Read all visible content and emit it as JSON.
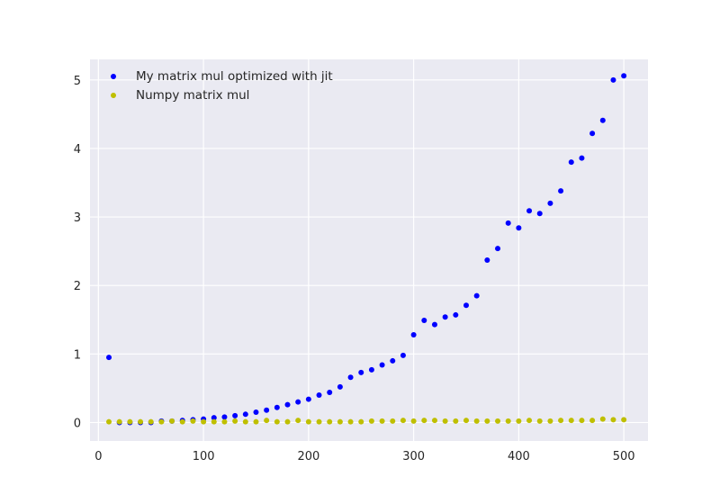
{
  "chart_data": {
    "type": "scatter",
    "title": "",
    "xlabel": "",
    "ylabel": "",
    "xlim": [
      -8,
      523
    ],
    "ylim": [
      -0.27,
      5.3
    ],
    "xticks": [
      0,
      100,
      200,
      300,
      400,
      500
    ],
    "yticks": [
      0,
      1,
      2,
      3,
      4,
      5
    ],
    "grid": true,
    "legend_position": "top-left",
    "series": [
      {
        "name": "My matrix mul optimized with jit",
        "color": "#0000ff",
        "points": [
          [
            10,
            0.95
          ],
          [
            20,
            0.0
          ],
          [
            30,
            0.0
          ],
          [
            40,
            0.0
          ],
          [
            50,
            0.0
          ],
          [
            60,
            0.02
          ],
          [
            70,
            0.02
          ],
          [
            80,
            0.03
          ],
          [
            90,
            0.04
          ],
          [
            100,
            0.05
          ],
          [
            110,
            0.07
          ],
          [
            120,
            0.08
          ],
          [
            130,
            0.1
          ],
          [
            140,
            0.12
          ],
          [
            150,
            0.15
          ],
          [
            160,
            0.18
          ],
          [
            170,
            0.22
          ],
          [
            180,
            0.26
          ],
          [
            190,
            0.3
          ],
          [
            200,
            0.34
          ],
          [
            210,
            0.4
          ],
          [
            220,
            0.44
          ],
          [
            230,
            0.52
          ],
          [
            240,
            0.66
          ],
          [
            250,
            0.73
          ],
          [
            260,
            0.77
          ],
          [
            270,
            0.84
          ],
          [
            280,
            0.9
          ],
          [
            290,
            0.98
          ],
          [
            300,
            1.28
          ],
          [
            310,
            1.49
          ],
          [
            320,
            1.43
          ],
          [
            330,
            1.54
          ],
          [
            340,
            1.57
          ],
          [
            350,
            1.71
          ],
          [
            360,
            1.85
          ],
          [
            370,
            2.37
          ],
          [
            380,
            2.54
          ],
          [
            390,
            2.91
          ],
          [
            400,
            2.84
          ],
          [
            410,
            3.09
          ],
          [
            420,
            3.05
          ],
          [
            430,
            3.2
          ],
          [
            440,
            3.38
          ],
          [
            450,
            3.8
          ],
          [
            460,
            3.86
          ],
          [
            470,
            4.22
          ],
          [
            480,
            4.41
          ],
          [
            490,
            5.0
          ],
          [
            500,
            5.06
          ]
        ]
      },
      {
        "name": "Numpy matrix mul",
        "color": "#bfbf00",
        "points": [
          [
            10,
            0.01
          ],
          [
            20,
            0.01
          ],
          [
            30,
            0.01
          ],
          [
            40,
            0.01
          ],
          [
            50,
            0.01
          ],
          [
            60,
            0.01
          ],
          [
            70,
            0.02
          ],
          [
            80,
            0.01
          ],
          [
            90,
            0.02
          ],
          [
            100,
            0.01
          ],
          [
            110,
            0.01
          ],
          [
            120,
            0.01
          ],
          [
            130,
            0.02
          ],
          [
            140,
            0.01
          ],
          [
            150,
            0.01
          ],
          [
            160,
            0.03
          ],
          [
            170,
            0.01
          ],
          [
            180,
            0.01
          ],
          [
            190,
            0.03
          ],
          [
            200,
            0.01
          ],
          [
            210,
            0.01
          ],
          [
            220,
            0.01
          ],
          [
            230,
            0.01
          ],
          [
            240,
            0.01
          ],
          [
            250,
            0.01
          ],
          [
            260,
            0.02
          ],
          [
            270,
            0.02
          ],
          [
            280,
            0.02
          ],
          [
            290,
            0.03
          ],
          [
            300,
            0.02
          ],
          [
            310,
            0.03
          ],
          [
            320,
            0.03
          ],
          [
            330,
            0.02
          ],
          [
            340,
            0.02
          ],
          [
            350,
            0.03
          ],
          [
            360,
            0.02
          ],
          [
            370,
            0.02
          ],
          [
            380,
            0.02
          ],
          [
            390,
            0.02
          ],
          [
            400,
            0.02
          ],
          [
            410,
            0.03
          ],
          [
            420,
            0.02
          ],
          [
            430,
            0.02
          ],
          [
            440,
            0.03
          ],
          [
            450,
            0.03
          ],
          [
            460,
            0.03
          ],
          [
            470,
            0.03
          ],
          [
            480,
            0.05
          ],
          [
            490,
            0.04
          ],
          [
            500,
            0.04
          ]
        ]
      }
    ]
  }
}
